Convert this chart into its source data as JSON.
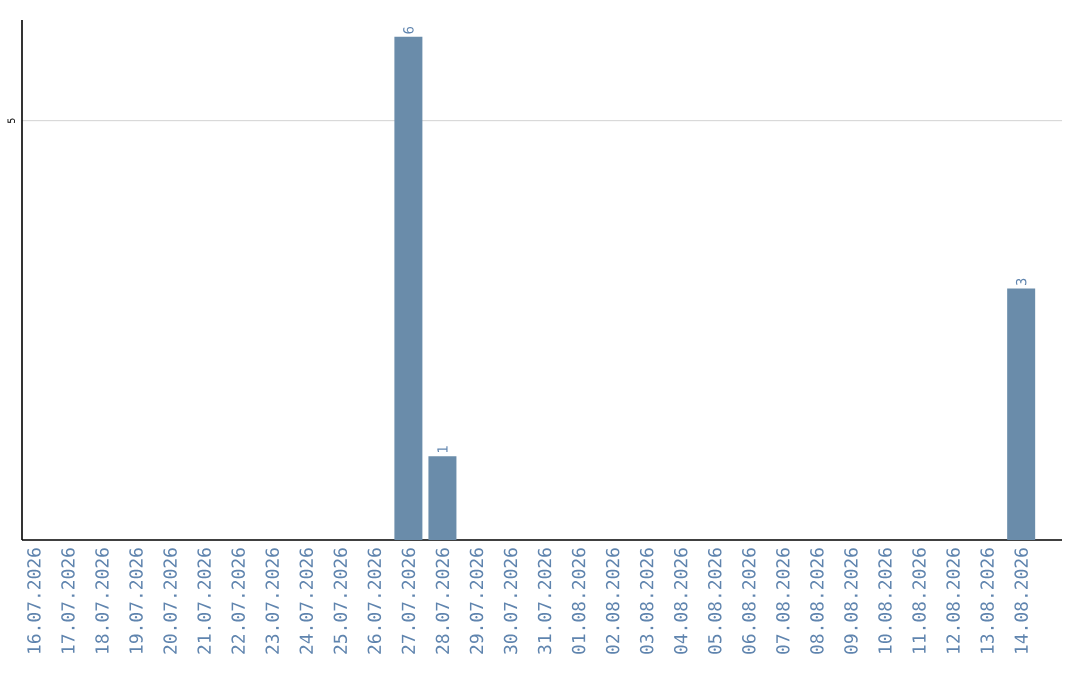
{
  "chart_data": {
    "type": "bar",
    "categories": [
      "16.07.2026",
      "17.07.2026",
      "18.07.2026",
      "19.07.2026",
      "20.07.2026",
      "21.07.2026",
      "22.07.2026",
      "23.07.2026",
      "24.07.2026",
      "25.07.2026",
      "26.07.2026",
      "27.07.2026",
      "28.07.2026",
      "29.07.2026",
      "30.07.2026",
      "31.07.2026",
      "01.08.2026",
      "02.08.2026",
      "03.08.2026",
      "04.08.2026",
      "05.08.2026",
      "06.08.2026",
      "07.08.2026",
      "08.08.2026",
      "09.08.2026",
      "10.08.2026",
      "11.08.2026",
      "12.08.2026",
      "13.08.2026",
      "14.08.2026"
    ],
    "values": [
      0,
      0,
      0,
      0,
      0,
      0,
      0,
      0,
      0,
      0,
      0,
      6,
      1,
      0,
      0,
      0,
      0,
      0,
      0,
      0,
      0,
      0,
      0,
      0,
      0,
      0,
      0,
      0,
      0,
      3
    ],
    "value_labels": [
      null,
      null,
      null,
      null,
      null,
      null,
      null,
      null,
      null,
      null,
      null,
      "6",
      "1",
      null,
      null,
      null,
      null,
      null,
      null,
      null,
      null,
      null,
      null,
      null,
      null,
      null,
      null,
      null,
      null,
      "3"
    ],
    "color": "#6a8caa",
    "ylim": [
      0,
      6.2
    ],
    "yticks": [
      5
    ],
    "grid": "y"
  }
}
